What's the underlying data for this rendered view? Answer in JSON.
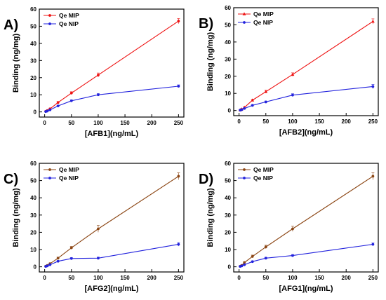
{
  "chart_data": [
    {
      "type": "line",
      "panel_label": "A)",
      "xlabel": "[AFB1](ng/mL)",
      "ylabel": "Binding (ng/mg)",
      "xlim": [
        -10,
        260
      ],
      "ylim": [
        -3,
        60
      ],
      "xticks": [
        "0",
        "50",
        "100",
        "150",
        "200",
        "250"
      ],
      "yticks": [
        "0",
        "10",
        "20",
        "30",
        "40",
        "50",
        "60"
      ],
      "legend_position": "top-left",
      "x": [
        2,
        5,
        10,
        25,
        50,
        100,
        250
      ],
      "series": [
        {
          "name": "Qe MIP",
          "color": "#ee1111",
          "marker": "circle",
          "values": [
            0.3,
            0.8,
            1.8,
            5.5,
            11,
            21.5,
            53
          ],
          "errors": [
            0.3,
            0.3,
            0.4,
            0.6,
            0.8,
            1.2,
            1.5
          ]
        },
        {
          "name": "Qe NIP",
          "color": "#2222dd",
          "marker": "circle",
          "values": [
            0.2,
            0.5,
            1.2,
            3.5,
            6.5,
            10,
            15
          ],
          "errors": [
            0.3,
            0.3,
            0.3,
            0.4,
            0.5,
            0.7,
            0.8
          ]
        }
      ]
    },
    {
      "type": "line",
      "panel_label": "B)",
      "xlabel": "[AFB2](ng/mL)",
      "ylabel": "Binding (ng/mg)",
      "xlim": [
        -10,
        260
      ],
      "ylim": [
        -3,
        60
      ],
      "xticks": [
        "0",
        "50",
        "100",
        "150",
        "200",
        "250"
      ],
      "yticks": [
        "0",
        "10",
        "20",
        "30",
        "40",
        "50",
        "60"
      ],
      "legend_position": "top-left",
      "x": [
        2,
        5,
        10,
        25,
        50,
        100,
        250
      ],
      "series": [
        {
          "name": "Qe MIP",
          "color": "#ee1111",
          "marker": "triangle",
          "values": [
            0.3,
            0.8,
            1.8,
            6,
            11,
            21,
            52
          ],
          "errors": [
            0.3,
            0.3,
            0.4,
            0.6,
            0.8,
            1.0,
            1.5
          ]
        },
        {
          "name": "Qe NIP",
          "color": "#2222dd",
          "marker": "circle",
          "values": [
            0.2,
            0.5,
            1.2,
            3,
            5,
            9,
            14
          ],
          "errors": [
            0.3,
            0.3,
            0.3,
            0.4,
            0.5,
            0.8,
            1.2
          ]
        }
      ]
    },
    {
      "type": "line",
      "panel_label": "C)",
      "xlabel": "[AFG2](ng/mL)",
      "ylabel": "Binding (ng/mg)",
      "xlim": [
        -10,
        260
      ],
      "ylim": [
        -3,
        60
      ],
      "xticks": [
        "0",
        "50",
        "100",
        "150",
        "200",
        "250"
      ],
      "yticks": [
        "0",
        "10",
        "20",
        "30",
        "40",
        "50",
        "60"
      ],
      "legend_position": "top-left",
      "x": [
        2,
        5,
        10,
        25,
        50,
        100,
        250
      ],
      "series": [
        {
          "name": "Qe MIP",
          "color": "#8b4513",
          "marker": "circle",
          "values": [
            0.3,
            0.8,
            1.8,
            5,
            11,
            22,
            52.5
          ],
          "errors": [
            0.3,
            0.3,
            0.4,
            0.6,
            0.8,
            2.0,
            2.0
          ]
        },
        {
          "name": "Qe NIP",
          "color": "#2222dd",
          "marker": "circle",
          "values": [
            0.2,
            0.5,
            1.2,
            3.2,
            4.8,
            5,
            13
          ],
          "errors": [
            0.3,
            0.3,
            0.3,
            0.4,
            0.5,
            0.6,
            1.0
          ]
        }
      ]
    },
    {
      "type": "line",
      "panel_label": "D)",
      "xlabel": "[AFG1](ng/mL)",
      "ylabel": "Binding (ng/mg)",
      "xlim": [
        -10,
        260
      ],
      "ylim": [
        -3,
        60
      ],
      "xticks": [
        "0",
        "50",
        "100",
        "150",
        "200",
        "250"
      ],
      "yticks": [
        "0",
        "10",
        "20",
        "30",
        "40",
        "50",
        "60"
      ],
      "legend_position": "top-left",
      "x": [
        2,
        5,
        10,
        25,
        50,
        100,
        250
      ],
      "series": [
        {
          "name": "Qe MIP",
          "color": "#8b4513",
          "marker": "circle",
          "values": [
            0.3,
            0.8,
            2.5,
            6,
            11.5,
            22,
            52.5
          ],
          "errors": [
            0.3,
            0.3,
            0.4,
            0.8,
            1.0,
            1.5,
            2.0
          ]
        },
        {
          "name": "Qe NIP",
          "color": "#2222dd",
          "marker": "circle",
          "values": [
            0.2,
            0.5,
            1.2,
            3,
            5,
            6.5,
            13
          ],
          "errors": [
            0.3,
            0.3,
            0.3,
            0.4,
            0.5,
            0.6,
            0.8
          ]
        }
      ]
    }
  ]
}
